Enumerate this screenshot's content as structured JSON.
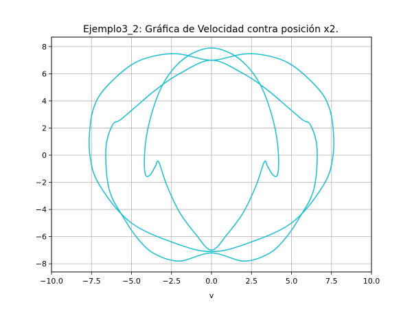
{
  "chart_data": {
    "type": "line",
    "title": "Ejemplo3_2: Gráfica de Velocidad contra posición x2.",
    "xlabel": "v",
    "ylabel": "",
    "xlim": [
      -10.0,
      10.0
    ],
    "ylim": [
      -8.6,
      8.7
    ],
    "xticks": [
      -10.0,
      -7.5,
      -5.0,
      -2.5,
      0.0,
      2.5,
      5.0,
      7.5,
      10.0
    ],
    "xtick_labels": [
      "−10.0",
      "−7.5",
      "−5.0",
      "−2.5",
      "0.0",
      "2.5",
      "5.0",
      "7.5",
      "10.0"
    ],
    "yticks": [
      -8,
      -6,
      -4,
      -2,
      0,
      2,
      4,
      6,
      8
    ],
    "ytick_labels": [
      "−8",
      "−6",
      "−4",
      "−2",
      "0",
      "2",
      "4",
      "6",
      "8"
    ],
    "grid": true,
    "line_color": "#17becf",
    "series": [
      {
        "values_x": [
          -3.3,
          -3.5,
          -3.8,
          -4.1,
          -4.2,
          -4.05,
          -3.6,
          -3.0,
          -2.2,
          -1.2,
          0.0,
          1.2,
          2.2,
          3.0,
          3.6,
          4.05,
          4.2,
          4.1,
          3.8,
          3.5,
          3.3,
          2.8,
          2.0,
          1.0,
          0.0,
          -1.0,
          -2.0,
          -2.8,
          -3.3
        ],
        "values_y": [
          -0.5,
          -0.8,
          -1.4,
          -1.5,
          -0.4,
          1.5,
          3.6,
          5.3,
          6.6,
          7.5,
          7.9,
          7.5,
          6.6,
          5.3,
          3.6,
          1.5,
          -0.4,
          -1.5,
          -1.4,
          -0.8,
          -0.5,
          -2.2,
          -4.2,
          -5.8,
          -7.0,
          -5.8,
          -4.2,
          -2.2,
          -0.5
        ]
      },
      {
        "values_x": [
          -7.0,
          -7.6,
          -7.55,
          -7.1,
          -6.1,
          -4.8,
          -3.4,
          -2.0,
          0.0,
          2.0,
          3.4,
          4.8,
          6.1,
          7.1,
          7.55,
          7.6,
          7.0,
          5.0,
          2.0,
          0.0,
          -2.0,
          -5.0,
          -7.0
        ],
        "values_y": [
          -2.2,
          0.0,
          2.5,
          4.2,
          5.6,
          6.8,
          7.35,
          7.45,
          7.0,
          7.45,
          7.35,
          6.8,
          5.6,
          4.2,
          2.5,
          0.0,
          -2.2,
          -5.0,
          -6.6,
          -7.1,
          -6.6,
          -5.0,
          -2.2
        ]
      },
      {
        "values_x": [
          -6.4,
          -6.6,
          -6.2,
          -5.7,
          -4.8,
          -3.5,
          -2.0,
          0.0,
          2.0,
          3.5,
          4.8,
          5.7,
          6.2,
          6.6,
          6.4,
          5.5,
          4.5,
          3.5,
          2.0,
          0.0,
          -2.0,
          -3.5,
          -4.5,
          -5.5,
          -6.4
        ],
        "values_y": [
          -2.5,
          0.5,
          2.2,
          2.6,
          3.5,
          4.8,
          6.0,
          7.0,
          6.0,
          4.8,
          3.5,
          2.6,
          2.2,
          0.5,
          -2.5,
          -4.6,
          -6.3,
          -7.3,
          -7.8,
          -7.2,
          -7.8,
          -7.3,
          -6.3,
          -4.6,
          -2.5
        ]
      }
    ]
  }
}
